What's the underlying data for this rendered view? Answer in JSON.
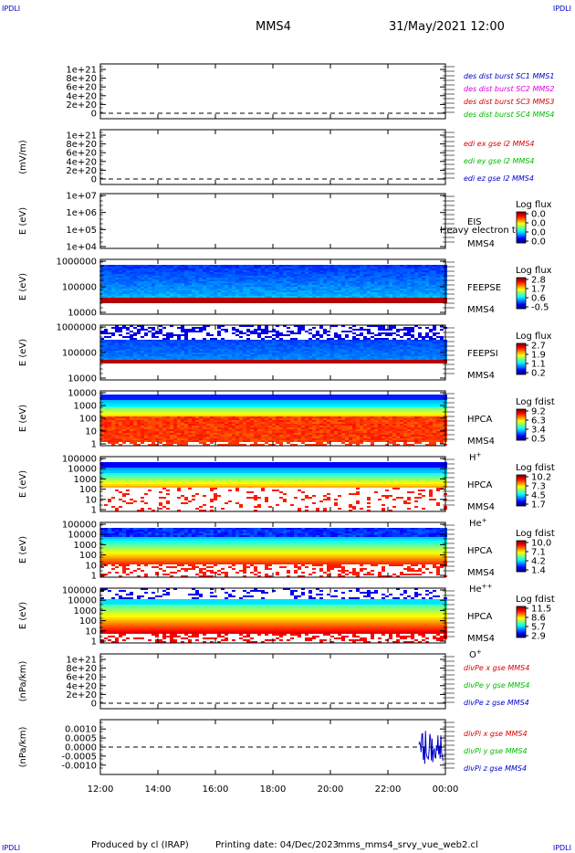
{
  "header": {
    "left_tag": "IPDLI",
    "right_tag": "IPDLI",
    "spacecraft": "MMS4",
    "datetime": "31/May/2021 12:00"
  },
  "footer": {
    "produced_by": "Produced by cl (IRAP)",
    "printing_date": "Printing date: 04/Dec/2023",
    "filename": "mms_mms4_srvy_vue_web2.cl",
    "bottom_left_tag": "IPDLI",
    "bottom_right_tag": "IPDLI"
  },
  "colors": {
    "red": "#dd0000",
    "green": "#00bb00",
    "blue": "#0000cc",
    "magenta": "#dd00dd",
    "dark_red": "#cc0000"
  },
  "chart_data": [
    {
      "id": "panel1",
      "type": "line",
      "ylabel": "",
      "y_ticks": [
        "1e+21",
        "8e+20",
        "6e+20",
        "4e+20",
        "2e+20",
        "0"
      ],
      "ylim": [
        0,
        1e+21
      ],
      "dashed_zero": true,
      "series": [
        {
          "name": "des dist burst SC1 MMS1",
          "color": "#0000cc",
          "values": []
        },
        {
          "name": "des dist burst SC2 MMS2",
          "color": "#dd00dd",
          "values": []
        },
        {
          "name": "des dist burst SC3 MMS3",
          "color": "#dd0000",
          "values": []
        },
        {
          "name": "des dist burst SC4 MMS4",
          "color": "#00bb00",
          "values": []
        }
      ]
    },
    {
      "id": "panel2",
      "type": "line",
      "ylabel": "(mV/m)",
      "y_ticks": [
        "1e+21",
        "8e+20",
        "6e+20",
        "4e+20",
        "2e+20",
        "0"
      ],
      "ylim": [
        0,
        1e+21
      ],
      "dashed_zero": true,
      "series": [
        {
          "name": "edi ex gse l2 MMS4",
          "color": "#dd0000",
          "values": []
        },
        {
          "name": "edi ey gse l2 MMS4",
          "color": "#00bb00",
          "values": []
        },
        {
          "name": "edi ez gse l2 MMS4",
          "color": "#0000cc",
          "values": []
        }
      ]
    },
    {
      "id": "panel3",
      "type": "heatmap",
      "ylabel": "E (eV)",
      "y_ticks": [
        "1e+07",
        "1e+06",
        "1e+05",
        "1e+04"
      ],
      "instrument": [
        "EIS",
        "MMS4"
      ],
      "overlay_text": "Heavy electron to",
      "colorbar_title": "Log flux",
      "colorbar_ticks": [
        "0.0",
        "0.0",
        "0.0",
        "0.0"
      ],
      "fill": "empty"
    },
    {
      "id": "panel4",
      "type": "heatmap",
      "ylabel": "E (eV)",
      "y_ticks": [
        "1000000",
        "100000",
        "10000"
      ],
      "instrument": [
        "FEEPSE",
        "MMS4"
      ],
      "colorbar_title": "Log flux",
      "colorbar_ticks": [
        "2.8",
        "1.7",
        "0.6",
        "-0.5"
      ],
      "fill": "feeps_e"
    },
    {
      "id": "panel5",
      "type": "heatmap",
      "ylabel": "E (eV)",
      "y_ticks": [
        "1000000",
        "100000",
        "10000"
      ],
      "instrument": [
        "FEEPSI",
        "MMS4"
      ],
      "colorbar_title": "Log flux",
      "colorbar_ticks": [
        "2.7",
        "1.9",
        "1.1",
        "0.2"
      ],
      "fill": "feeps_i"
    },
    {
      "id": "panel6",
      "type": "heatmap",
      "ylabel": "E (eV)",
      "y_ticks": [
        "10000",
        "1000",
        "100",
        "10",
        "1"
      ],
      "instrument": [
        "HPCA",
        "MMS4"
      ],
      "species": "H",
      "species_sup": "+",
      "colorbar_title": "Log fdist",
      "colorbar_ticks": [
        "9.2",
        "6.3",
        "3.4",
        "0.5"
      ],
      "fill": "hplus"
    },
    {
      "id": "panel7",
      "type": "heatmap",
      "ylabel": "E (eV)",
      "y_ticks": [
        "100000",
        "10000",
        "1000",
        "100",
        "10",
        "1"
      ],
      "instrument": [
        "HPCA",
        "MMS4"
      ],
      "species": "He",
      "species_sup": "+",
      "colorbar_title": "Log fdist",
      "colorbar_ticks": [
        "10.2",
        "7.3",
        "4.5",
        "1.7"
      ],
      "fill": "heplus"
    },
    {
      "id": "panel8",
      "type": "heatmap",
      "ylabel": "E (eV)",
      "y_ticks": [
        "100000",
        "10000",
        "1000",
        "100",
        "10",
        "1"
      ],
      "instrument": [
        "HPCA",
        "MMS4"
      ],
      "species": "He",
      "species_sup": "++",
      "colorbar_title": "Log fdist",
      "colorbar_ticks": [
        "10.0",
        "7.1",
        "4.2",
        "1.4"
      ],
      "fill": "hepp"
    },
    {
      "id": "panel9",
      "type": "heatmap",
      "ylabel": "E (eV)",
      "y_ticks": [
        "100000",
        "10000",
        "1000",
        "100",
        "10",
        "1"
      ],
      "instrument": [
        "HPCA",
        "MMS4"
      ],
      "species": "O",
      "species_sup": "+",
      "colorbar_title": "Log fdist",
      "colorbar_ticks": [
        "11.5",
        "8.6",
        "5.7",
        "2.9"
      ],
      "fill": "oplus"
    },
    {
      "id": "panel10",
      "type": "line",
      "ylabel": "(nPa/km)",
      "y_ticks": [
        "1e+21",
        "8e+20",
        "6e+20",
        "4e+20",
        "2e+20",
        "0"
      ],
      "ylim": [
        0,
        1e+21
      ],
      "dashed_zero": true,
      "series": [
        {
          "name": "divPe x gse MMS4",
          "color": "#dd0000",
          "values": []
        },
        {
          "name": "divPe y gse MMS4",
          "color": "#00bb00",
          "values": []
        },
        {
          "name": "divPe z gse MMS4",
          "color": "#0000cc",
          "values": []
        }
      ]
    },
    {
      "id": "panel11",
      "type": "line",
      "ylabel": "(nPa/km)",
      "y_ticks": [
        "0.0010",
        "0.0005",
        "0.0000",
        "-0.0005",
        "-0.0010"
      ],
      "ylim": [
        -0.0013,
        0.0013
      ],
      "dashed_zero": true,
      "series": [
        {
          "name": "divPi x gse MMS4",
          "color": "#dd0000",
          "values": []
        },
        {
          "name": "divPi y gse MMS4",
          "color": "#00bb00",
          "values": []
        },
        {
          "name": "divPi z gse MMS4",
          "color": "#0000cc",
          "values": [],
          "active_range": [
            "23:05",
            "24:00"
          ],
          "amplitude": 0.0011
        }
      ]
    }
  ],
  "x_axis": {
    "ticks": [
      "12:00",
      "14:00",
      "16:00",
      "18:00",
      "20:00",
      "22:00",
      "00:00"
    ]
  }
}
